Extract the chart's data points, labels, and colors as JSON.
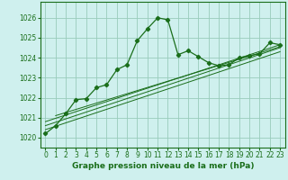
{
  "title": "Graphe pression niveau de la mer (hPa)",
  "bg_color": "#cff0ee",
  "grid_color": "#99ccbb",
  "line_color": "#1a6e1a",
  "xlim": [
    -0.5,
    23.5
  ],
  "ylim": [
    1019.5,
    1026.8
  ],
  "yticks": [
    1020,
    1021,
    1022,
    1023,
    1024,
    1025,
    1026
  ],
  "xticks": [
    0,
    1,
    2,
    3,
    4,
    5,
    6,
    7,
    8,
    9,
    10,
    11,
    12,
    13,
    14,
    15,
    16,
    17,
    18,
    19,
    20,
    21,
    22,
    23
  ],
  "main_line": [
    [
      0,
      1020.2
    ],
    [
      1,
      1020.6
    ],
    [
      2,
      1021.2
    ],
    [
      3,
      1021.9
    ],
    [
      4,
      1021.95
    ],
    [
      5,
      1022.5
    ],
    [
      6,
      1022.65
    ],
    [
      7,
      1023.4
    ],
    [
      8,
      1023.65
    ],
    [
      9,
      1024.85
    ],
    [
      10,
      1025.45
    ],
    [
      11,
      1026.0
    ],
    [
      12,
      1025.9
    ],
    [
      13,
      1024.15
    ],
    [
      14,
      1024.35
    ],
    [
      15,
      1024.05
    ],
    [
      16,
      1023.75
    ],
    [
      17,
      1023.6
    ],
    [
      18,
      1023.65
    ],
    [
      19,
      1024.0
    ],
    [
      20,
      1024.1
    ],
    [
      21,
      1024.2
    ],
    [
      22,
      1024.75
    ],
    [
      23,
      1024.65
    ]
  ],
  "trend_lines": [
    [
      [
        0,
        1020.4
      ],
      [
        23,
        1024.3
      ]
    ],
    [
      [
        0,
        1020.6
      ],
      [
        23,
        1024.5
      ]
    ],
    [
      [
        0,
        1020.8
      ],
      [
        23,
        1024.65
      ]
    ],
    [
      [
        1,
        1021.1
      ],
      [
        23,
        1024.55
      ]
    ]
  ],
  "tick_fontsize": 5.5,
  "label_fontsize": 6.5
}
